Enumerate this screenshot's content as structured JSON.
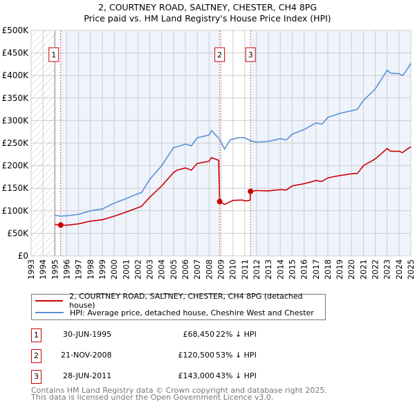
{
  "header": {
    "title_line1": "2, COURTNEY ROAD, SALTNEY, CHESTER, CH4 8PG",
    "title_line2": "Price paid vs. HM Land Registry's House Price Index (HPI)"
  },
  "colors": {
    "property": "#cc0000",
    "hpi": "#5b8fd4",
    "band": "#eef3fc",
    "grid": "#cccccc"
  },
  "chart_data": {
    "type": "line",
    "xlim": [
      1993,
      2025
    ],
    "ylim": [
      0,
      500000
    ],
    "y_ticks": [
      0,
      50000,
      100000,
      150000,
      200000,
      250000,
      300000,
      350000,
      400000,
      450000,
      500000
    ],
    "y_tick_labels": [
      "£0",
      "£50K",
      "£100K",
      "£150K",
      "£200K",
      "£250K",
      "£300K",
      "£350K",
      "£400K",
      "£450K",
      "£500K"
    ],
    "x_tick_labels": [
      "1993",
      "1994",
      "1995",
      "1996",
      "1997",
      "1998",
      "1999",
      "2000",
      "2001",
      "2002",
      "2003",
      "2004",
      "2005",
      "2006",
      "2007",
      "2008",
      "2009",
      "2010",
      "2011",
      "2012",
      "2013",
      "2014",
      "2015",
      "2016",
      "2017",
      "2018",
      "2019",
      "2020",
      "2021",
      "2022",
      "2023",
      "2024",
      "2025"
    ],
    "grid": true,
    "hatched_before": 1995,
    "series": [
      {
        "name": "2, COURTNEY ROAD, SALTNEY, CHESTER, CH4 8PG (detached house)",
        "color": "#cc0000",
        "x": [
          1995.0,
          1995.5,
          1996,
          1997,
          1998,
          1999,
          2000,
          2001,
          2002,
          2002.3,
          2003,
          2004,
          2005,
          2005.3,
          2006,
          2006.5,
          2007,
          2008,
          2008.2,
          2008.8,
          2008.89,
          2009.3,
          2010,
          2010.8,
          2011,
          2011.45,
          2011.49,
          2012,
          2013,
          2014,
          2014.5,
          2015,
          2016,
          2017,
          2017.5,
          2018,
          2019,
          2020,
          2020.5,
          2021,
          2022,
          2023,
          2023.3,
          2024,
          2024.3,
          2024.6,
          2025
        ],
        "y": [
          70000,
          68450,
          68000,
          71000,
          77000,
          80000,
          88000,
          97000,
          107000,
          110000,
          130000,
          155000,
          185000,
          190000,
          195000,
          190000,
          205000,
          210000,
          218000,
          212000,
          120500,
          114000,
          123000,
          124000,
          122000,
          123000,
          143000,
          145000,
          144000,
          147000,
          146000,
          155000,
          160000,
          167000,
          165000,
          173000,
          178000,
          182000,
          183000,
          200000,
          215000,
          238000,
          232000,
          232000,
          229000,
          235000,
          242000
        ]
      },
      {
        "name": "HPI: Average price, detached house, Cheshire West and Chester",
        "color": "#5b8fd4",
        "x": [
          1995.0,
          1995.5,
          1996,
          1997,
          1998,
          1999,
          2000,
          2001,
          2002,
          2002.3,
          2003,
          2004,
          2005,
          2005.3,
          2006,
          2006.5,
          2007,
          2008,
          2008.2,
          2008.9,
          2009.3,
          2009.8,
          2010.5,
          2011,
          2011.5,
          2012,
          2013,
          2014,
          2014.5,
          2015,
          2016,
          2017,
          2017.5,
          2018,
          2019,
          2020,
          2020.5,
          2021,
          2022,
          2023,
          2023.3,
          2024,
          2024.3,
          2024.6,
          2025
        ],
        "y": [
          90000,
          88000,
          89000,
          92000,
          100000,
          104000,
          117000,
          127000,
          138000,
          140000,
          170000,
          200000,
          240000,
          242000,
          248000,
          244000,
          262000,
          268000,
          278000,
          258000,
          237000,
          258000,
          262000,
          262000,
          255000,
          252000,
          254000,
          260000,
          257000,
          270000,
          280000,
          295000,
          292000,
          307000,
          316000,
          322000,
          325000,
          345000,
          370000,
          412000,
          405000,
          404000,
          400000,
          410000,
          427000
        ]
      }
    ],
    "annotations": [
      {
        "label": "1",
        "x": 1995.49,
        "y": 68450
      },
      {
        "label": "2",
        "x": 2008.89,
        "y": 120500
      },
      {
        "label": "3",
        "x": 2011.49,
        "y": 143000
      }
    ]
  },
  "legend": {
    "property": "2, COURTNEY ROAD, SALTNEY, CHESTER, CH4 8PG (detached house)",
    "hpi": "HPI: Average price, detached house, Cheshire West and Chester"
  },
  "transactions": [
    {
      "num": "1",
      "date": "30-JUN-1995",
      "price": "£68,450",
      "diff": "22% ↓ HPI"
    },
    {
      "num": "2",
      "date": "21-NOV-2008",
      "price": "£120,500",
      "diff": "53% ↓ HPI"
    },
    {
      "num": "3",
      "date": "28-JUN-2011",
      "price": "£143,000",
      "diff": "43% ↓ HPI"
    }
  ],
  "footer": {
    "line1": "Contains HM Land Registry data © Crown copyright and database right 2025.",
    "line2": "This data is licensed under the Open Government Licence v3.0."
  }
}
